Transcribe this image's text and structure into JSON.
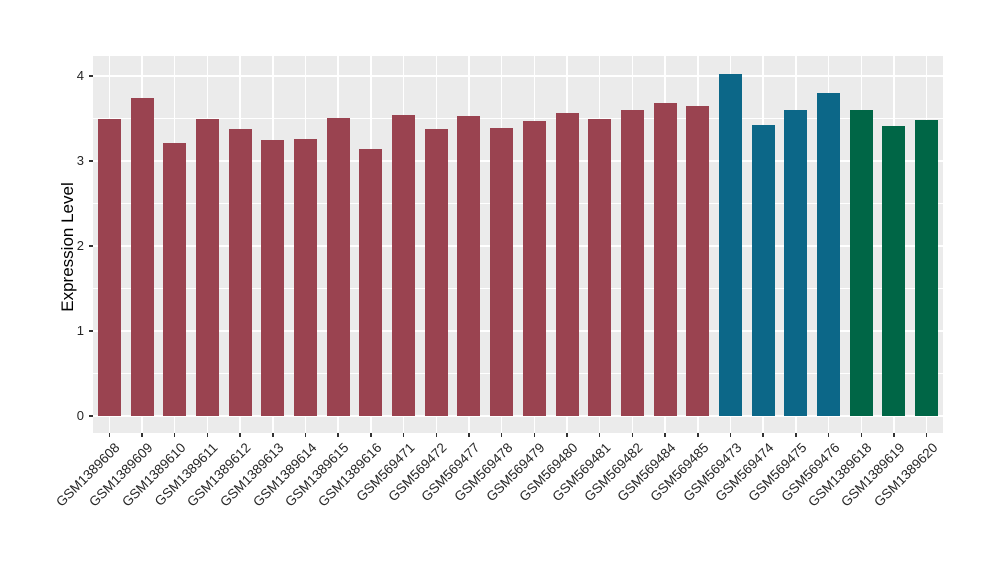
{
  "chart_data": {
    "type": "bar",
    "title": "",
    "xlabel": "",
    "ylabel": "Expression Level",
    "ylim": [
      0,
      4.24
    ],
    "yticks": [
      0,
      1,
      2,
      3,
      4
    ],
    "grid": "white major gridlines at integer y values and category centers, white minor gridlines at 0.5 steps, on light-gray panel",
    "legend_position": "none",
    "categories": [
      "GSM1389608",
      "GSM1389609",
      "GSM1389610",
      "GSM1389611",
      "GSM1389612",
      "GSM1389613",
      "GSM1389614",
      "GSM1389615",
      "GSM1389616",
      "GSM569471",
      "GSM569472",
      "GSM569477",
      "GSM569478",
      "GSM569479",
      "GSM569480",
      "GSM569481",
      "GSM569482",
      "GSM569484",
      "GSM569485",
      "GSM569473",
      "GSM569474",
      "GSM569475",
      "GSM569476",
      "GSM1389618",
      "GSM1389619",
      "GSM1389620"
    ],
    "values": [
      3.49,
      3.74,
      3.21,
      3.49,
      3.38,
      3.25,
      3.26,
      3.51,
      3.14,
      3.54,
      3.38,
      3.53,
      3.39,
      3.47,
      3.57,
      3.5,
      3.6,
      3.68,
      3.65,
      4.02,
      3.42,
      3.6,
      3.8,
      3.6,
      3.41,
      3.48
    ],
    "bar_groups": [
      "red",
      "red",
      "red",
      "red",
      "red",
      "red",
      "red",
      "red",
      "red",
      "red",
      "red",
      "red",
      "red",
      "red",
      "red",
      "red",
      "red",
      "red",
      "red",
      "teal",
      "teal",
      "teal",
      "teal",
      "green",
      "green",
      "green"
    ],
    "palette": {
      "red": "#9A4350",
      "teal": "#0C6788",
      "green": "#006646"
    },
    "colors": {
      "panel_background": "#EBEBEB",
      "gridline": "#FFFFFF",
      "tick_mark": "#333333",
      "axis_text": "#262626",
      "axis_title": "#000000",
      "page_background": "#FFFFFF"
    }
  }
}
